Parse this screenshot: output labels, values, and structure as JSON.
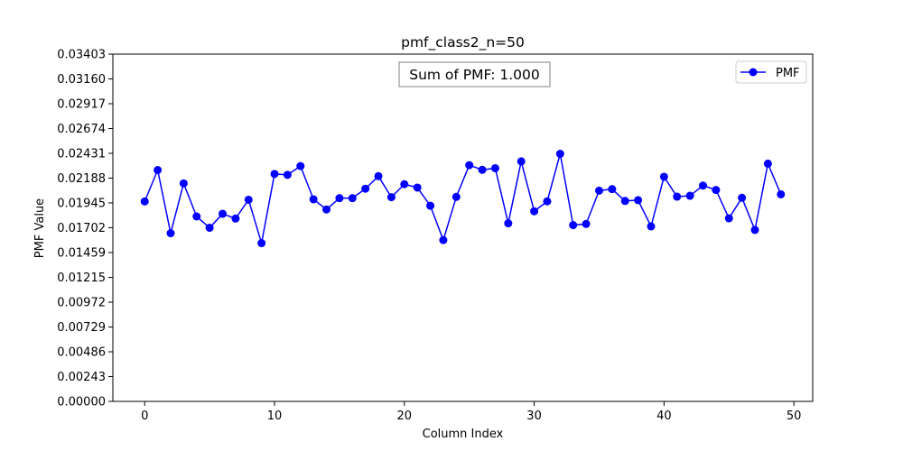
{
  "chart_data": {
    "type": "line",
    "title": "pmf_class2_n=50",
    "xlabel": "Column Index",
    "ylabel": "PMF Value",
    "xlim": [
      -2.45,
      51.45
    ],
    "ylim": [
      0,
      0.03403
    ],
    "xticks": [
      0,
      10,
      20,
      30,
      40,
      50
    ],
    "xtick_labels": [
      "0",
      "10",
      "20",
      "30",
      "40",
      "50"
    ],
    "yticks": [
      0,
      0.00243,
      0.00486,
      0.00729,
      0.00972,
      0.01215,
      0.01459,
      0.01702,
      0.01945,
      0.02188,
      0.02431,
      0.02674,
      0.02917,
      0.0316,
      0.03403
    ],
    "ytick_labels": [
      "0.00000",
      "0.00243",
      "0.00486",
      "0.00729",
      "0.00972",
      "0.01215",
      "0.01459",
      "0.01702",
      "0.01945",
      "0.02188",
      "0.02431",
      "0.02674",
      "0.02917",
      "0.03160",
      "0.03403"
    ],
    "grid": false,
    "legend_position": "top-right",
    "annotation": "Sum of PMF: 1.000",
    "series": [
      {
        "name": "PMF",
        "color": "#0000ff",
        "marker": "circle",
        "x": [
          0,
          1,
          2,
          3,
          4,
          5,
          6,
          7,
          8,
          9,
          10,
          11,
          12,
          13,
          14,
          15,
          16,
          17,
          18,
          19,
          20,
          21,
          22,
          23,
          24,
          25,
          26,
          27,
          28,
          29,
          30,
          31,
          32,
          33,
          34,
          35,
          36,
          37,
          38,
          39,
          40,
          41,
          42,
          43,
          44,
          45,
          46,
          47,
          48,
          49
        ],
        "values": [
          0.01959,
          0.02267,
          0.01648,
          0.02136,
          0.01812,
          0.01701,
          0.01838,
          0.01792,
          0.01976,
          0.01551,
          0.02229,
          0.0222,
          0.02306,
          0.0198,
          0.01881,
          0.01992,
          0.01992,
          0.02084,
          0.02207,
          0.02001,
          0.02128,
          0.02095,
          0.01917,
          0.01581,
          0.02004,
          0.02315,
          0.02269,
          0.02285,
          0.01745,
          0.02352,
          0.01863,
          0.0196,
          0.02426,
          0.01727,
          0.01739,
          0.02065,
          0.0208,
          0.01964,
          0.01972,
          0.01715,
          0.02201,
          0.02006,
          0.02015,
          0.02115,
          0.02072,
          0.01794,
          0.01995,
          0.0168,
          0.0233,
          0.02029
        ]
      }
    ]
  }
}
